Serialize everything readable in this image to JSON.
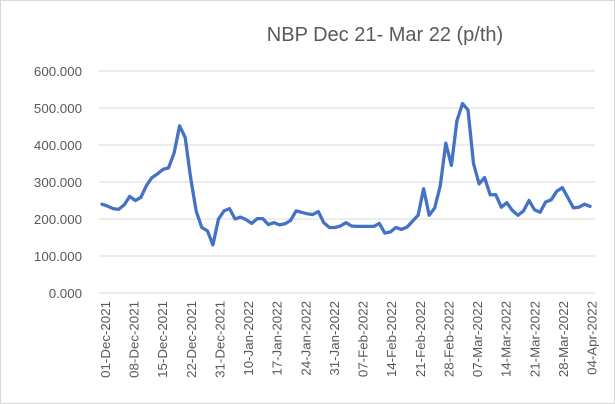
{
  "chart_data": {
    "type": "line",
    "title": "NBP Dec 21- Mar 22 (p/th)",
    "xlabel": "",
    "ylabel": "",
    "ylim": [
      0,
      600
    ],
    "grid": true,
    "legend": "none",
    "line_color": "#4472c4",
    "yticks": [
      "0.000",
      "100.000",
      "200.000",
      "300.000",
      "400.000",
      "500.000",
      "600.000"
    ],
    "xticks": [
      "01-Dec-2021",
      "08-Dec-2021",
      "15-Dec-2021",
      "22-Dec-2021",
      "31-Dec-2021",
      "10-Jan-2022",
      "17-Jan-2022",
      "24-Jan-2022",
      "31-Jan-2022",
      "07-Feb-2022",
      "14-Feb-2022",
      "21-Feb-2022",
      "28-Feb-2022",
      "07-Mar-2022",
      "14-Mar-2022",
      "21-Mar-2022",
      "28-Mar-2022",
      "04-Apr-2022"
    ],
    "series": [
      {
        "values": [
          240,
          235,
          228,
          226,
          238,
          261,
          250,
          258,
          290,
          312,
          322,
          334,
          338,
          378,
          452,
          420,
          310,
          220,
          177,
          168,
          130,
          200,
          222,
          228,
          200,
          205,
          198,
          188,
          201,
          201,
          185,
          190,
          184,
          187,
          196,
          222,
          218,
          214,
          212,
          220,
          190,
          177,
          177,
          181,
          190,
          181,
          180,
          180,
          180,
          180,
          188,
          162,
          165,
          177,
          172,
          178,
          194,
          210,
          282,
          210,
          230,
          290,
          405,
          345,
          465,
          512,
          495,
          350,
          295,
          312,
          265,
          266,
          232,
          244,
          223,
          210,
          222,
          250,
          225,
          218,
          246,
          252,
          275,
          285,
          258,
          230,
          232,
          240,
          234
        ]
      }
    ]
  }
}
